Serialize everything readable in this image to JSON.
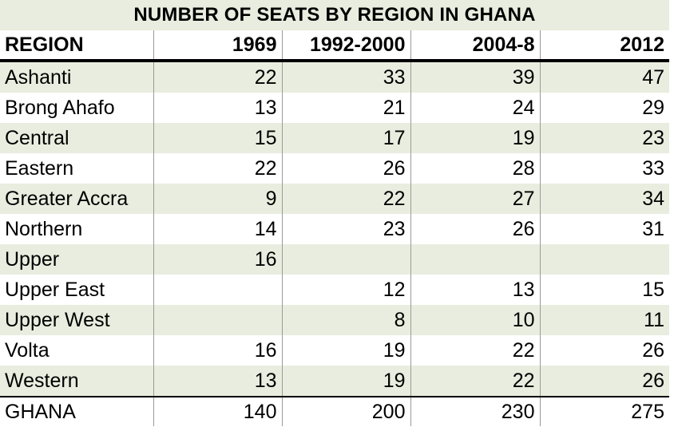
{
  "title": "NUMBER OF SEATS BY REGION IN GHANA",
  "columns": [
    "REGION",
    "1969",
    "1992-2000",
    "2004-8",
    "2012"
  ],
  "rows": [
    {
      "region": "Ashanti",
      "values": [
        "22",
        "33",
        "39",
        "47"
      ]
    },
    {
      "region": "Brong Ahafo",
      "values": [
        "13",
        "21",
        "24",
        "29"
      ]
    },
    {
      "region": "Central",
      "values": [
        "15",
        "17",
        "19",
        "23"
      ]
    },
    {
      "region": "Eastern",
      "values": [
        "22",
        "26",
        "28",
        "33"
      ]
    },
    {
      "region": "Greater Accra",
      "values": [
        "9",
        "22",
        "27",
        "34"
      ]
    },
    {
      "region": "Northern",
      "values": [
        "14",
        "23",
        "26",
        "31"
      ]
    },
    {
      "region": "Upper",
      "values": [
        "16",
        "",
        "",
        ""
      ]
    },
    {
      "region": "Upper East",
      "values": [
        "",
        "12",
        "13",
        "15"
      ]
    },
    {
      "region": "Upper West",
      "values": [
        "",
        "8",
        "10",
        "11"
      ]
    },
    {
      "region": "Volta",
      "values": [
        "16",
        "19",
        "22",
        "26"
      ]
    },
    {
      "region": "Western",
      "values": [
        "13",
        "19",
        "22",
        "26"
      ]
    }
  ],
  "total": {
    "region": "GHANA",
    "values": [
      "140",
      "200",
      "230",
      "275"
    ]
  },
  "colors": {
    "row_shade": "#e9eddf",
    "rule": "#000000",
    "divider": "#9a9a9a"
  }
}
